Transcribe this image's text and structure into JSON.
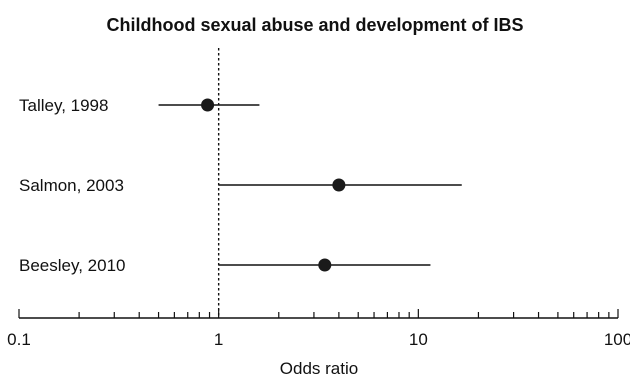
{
  "chart_data": {
    "type": "forest",
    "title": "Childhood sexual abuse and development of IBS",
    "xlabel": "Odds ratio",
    "ylabel": "",
    "xscale": "log",
    "xlim": [
      0.1,
      100
    ],
    "x_ticks": [
      0.1,
      1,
      10,
      100
    ],
    "x_tick_labels": [
      "0.1",
      "1",
      "10",
      "100"
    ],
    "reference_line": 1,
    "grid": false,
    "studies": [
      {
        "label": "Talley, 1998",
        "or": 0.88,
        "ci_low": 0.5,
        "ci_high": 1.6
      },
      {
        "label": "Salmon, 2003",
        "or": 4.0,
        "ci_low": 1.0,
        "ci_high": 16.5
      },
      {
        "label": "Beesley, 2010",
        "or": 3.4,
        "ci_low": 1.0,
        "ci_high": 11.5
      }
    ]
  }
}
